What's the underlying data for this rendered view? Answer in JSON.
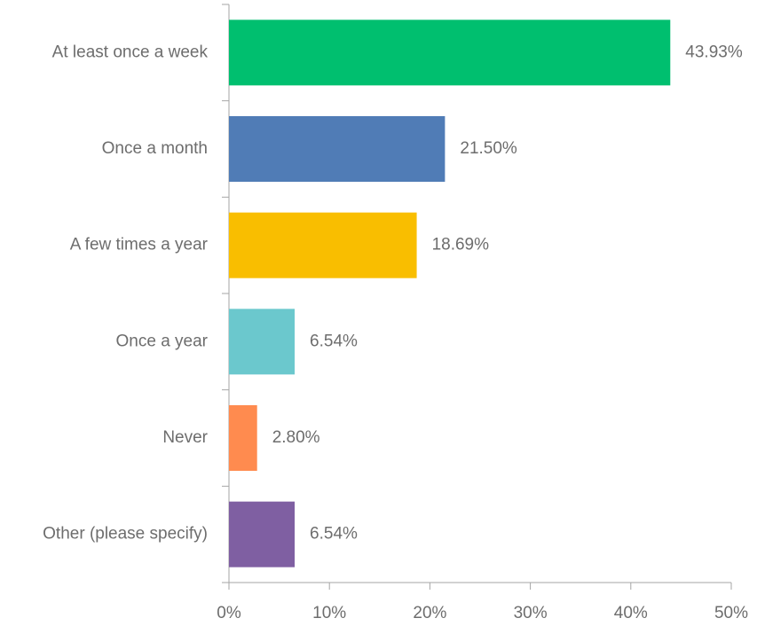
{
  "chart_data": {
    "type": "bar",
    "orientation": "horizontal",
    "categories": [
      "At least once a week",
      "Once a month",
      "A few times a year",
      "Once a year",
      "Never",
      "Other (please specify)"
    ],
    "values": [
      43.93,
      21.5,
      18.69,
      6.54,
      2.8,
      6.54
    ],
    "value_labels": [
      "43.93%",
      "21.50%",
      "18.69%",
      "6.54%",
      "2.80%",
      "6.54%"
    ],
    "colors": [
      "#00bf6f",
      "#507cb6",
      "#f9be00",
      "#6bc8cd",
      "#ff8b4f",
      "#7f5fa2"
    ],
    "xlim": [
      0,
      50
    ],
    "xticks": [
      {
        "value": 0,
        "label": "0%"
      },
      {
        "value": 10,
        "label": "10%"
      },
      {
        "value": 20,
        "label": "20%"
      },
      {
        "value": 30,
        "label": "30%"
      },
      {
        "value": 40,
        "label": "40%"
      },
      {
        "value": 50,
        "label": "50%"
      }
    ],
    "grid": false
  }
}
